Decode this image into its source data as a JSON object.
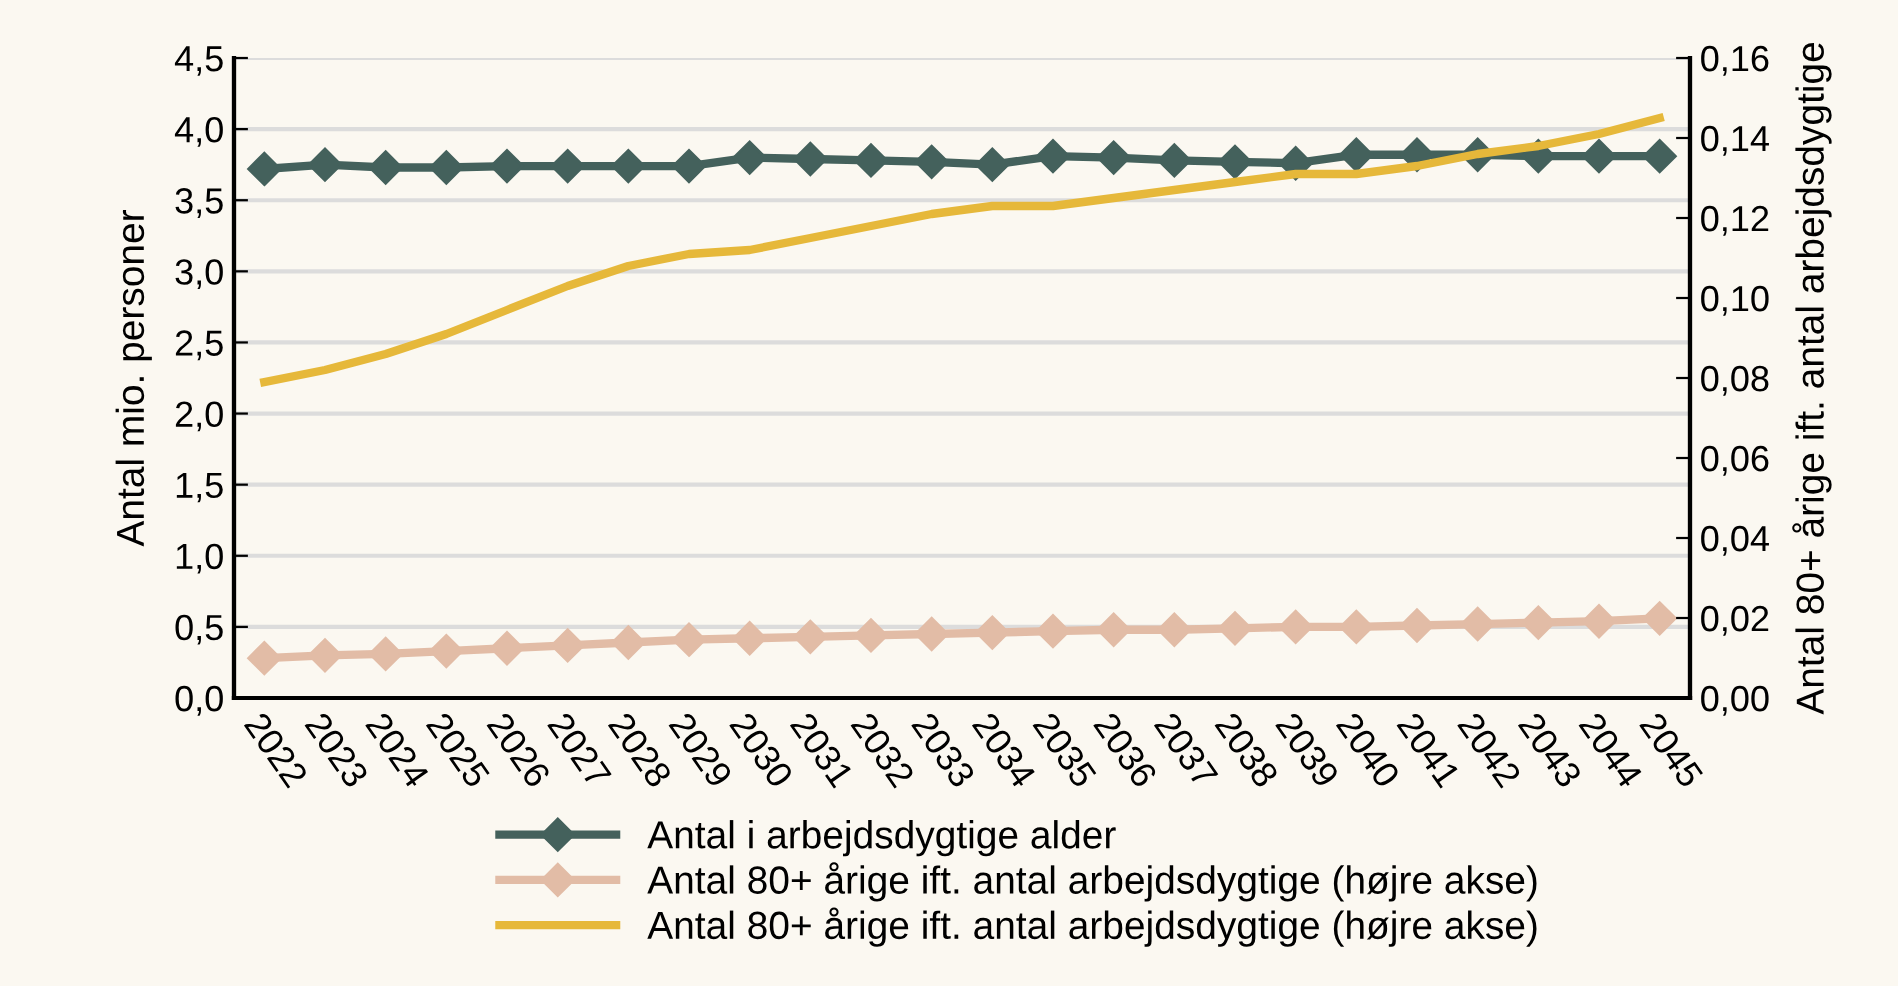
{
  "chart_data": {
    "type": "line",
    "ylabel": "Antal mio. personer",
    "y2label": "Antal 80+ årige ift. antal arbejdsdygtige",
    "categories": [
      "2022",
      "2023",
      "2024",
      "2025",
      "2026",
      "2027",
      "2028",
      "2029",
      "2030",
      "2031",
      "2032",
      "2033",
      "2034",
      "2035",
      "2036",
      "2037",
      "2038",
      "2039",
      "2040",
      "2041",
      "2042",
      "2043",
      "2044",
      "2045"
    ],
    "series": [
      {
        "name": "Antal i arbejdsdygtige alder",
        "color": "#44615c",
        "marker": "diamond",
        "values": [
          3.72,
          3.75,
          3.73,
          3.73,
          3.74,
          3.74,
          3.74,
          3.74,
          3.8,
          3.79,
          3.78,
          3.77,
          3.75,
          3.81,
          3.8,
          3.78,
          3.77,
          3.76,
          3.82,
          3.82,
          3.82,
          3.81,
          3.81,
          3.81
        ]
      },
      {
        "name": "Antal 80+ årige ift. antal arbejdsdygtige (højre akse)",
        "color": "#e2bca6",
        "marker": "diamond",
        "values": [
          0.28,
          0.3,
          0.31,
          0.33,
          0.35,
          0.37,
          0.39,
          0.41,
          0.42,
          0.43,
          0.44,
          0.45,
          0.46,
          0.47,
          0.48,
          0.48,
          0.49,
          0.5,
          0.5,
          0.51,
          0.52,
          0.53,
          0.54,
          0.56
        ]
      },
      {
        "name": "Antal 80+ årige ift. antal arbejdsdygtige (højre akse)",
        "color": "#e6b83a",
        "axis": "y2",
        "values": [
          0.079,
          0.082,
          0.086,
          0.091,
          0.097,
          0.103,
          0.108,
          0.111,
          0.112,
          0.115,
          0.118,
          0.121,
          0.123,
          0.123,
          0.125,
          0.127,
          0.129,
          0.131,
          0.131,
          0.133,
          0.136,
          0.138,
          0.141,
          0.145
        ]
      }
    ],
    "ylim": [
      0,
      4.5
    ],
    "yticks": [
      {
        "value": 0,
        "label": "0,0"
      },
      {
        "value": 0.5,
        "label": "0,5"
      },
      {
        "value": 1,
        "label": "1,0"
      },
      {
        "value": 1.5,
        "label": "1,5"
      },
      {
        "value": 2,
        "label": "2,0"
      },
      {
        "value": 2.5,
        "label": "2,5"
      },
      {
        "value": 3,
        "label": "3,0"
      },
      {
        "value": 3.5,
        "label": "3,5"
      },
      {
        "value": 4,
        "label": "4,0"
      },
      {
        "value": 4.5,
        "label": "4,5"
      }
    ],
    "y2lim": [
      0,
      0.16
    ],
    "y2ticks": [
      {
        "value": 0,
        "label": "0,00"
      },
      {
        "value": 0.02,
        "label": "0,02"
      },
      {
        "value": 0.04,
        "label": "0,04"
      },
      {
        "value": 0.06,
        "label": "0,06"
      },
      {
        "value": 0.08,
        "label": "0,08"
      },
      {
        "value": 0.1,
        "label": "0,10"
      },
      {
        "value": 0.12,
        "label": "0,12"
      },
      {
        "value": 0.14,
        "label": "0,14"
      },
      {
        "value": 0.16,
        "label": "0,16"
      }
    ],
    "grid": "y",
    "legend": "bottom"
  }
}
